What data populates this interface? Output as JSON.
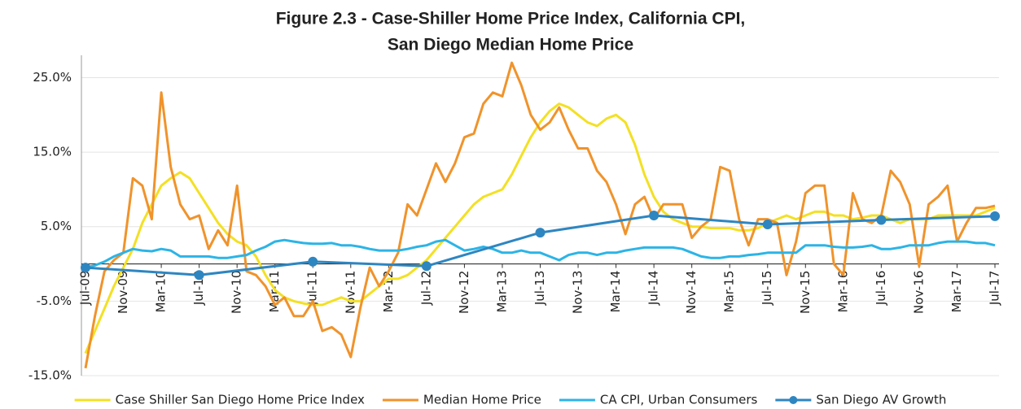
{
  "chart_data": {
    "type": "line",
    "title": [
      "Figure 2.3 - Case-Shiller Home Price Index, California CPI,",
      "San Diego Median Home Price"
    ],
    "categories": [
      "Jul-09",
      null,
      null,
      null,
      "Nov-09",
      null,
      null,
      null,
      "Mar-10",
      null,
      null,
      null,
      "Jul-10",
      null,
      null,
      null,
      "Nov-10",
      null,
      null,
      null,
      "Mar-11",
      null,
      null,
      null,
      "Jul-11",
      null,
      null,
      null,
      "Nov-11",
      null,
      null,
      null,
      "Mar-12",
      null,
      null,
      null,
      "Jul-12",
      null,
      null,
      null,
      "Nov-12",
      null,
      null,
      null,
      "Mar-13",
      null,
      null,
      null,
      "Jul-13",
      null,
      null,
      null,
      "Nov-13",
      null,
      null,
      null,
      "Mar-14",
      null,
      null,
      null,
      "Jul-14",
      null,
      null,
      null,
      "Nov-14",
      null,
      null,
      null,
      "Mar-15",
      null,
      null,
      null,
      "Jul-15",
      null,
      null,
      null,
      "Nov-15",
      null,
      null,
      null,
      "Mar-16",
      null,
      null,
      null,
      "Jul-16",
      null,
      null,
      null,
      "Nov-16",
      null,
      null,
      null,
      "Mar-17",
      null,
      null,
      null,
      "Jul-17"
    ],
    "series": [
      {
        "name": "Case Shiller San Diego Home Price Index",
        "color": "#f3e024",
        "values": [
          -12,
          -9,
          -6,
          -3,
          -0.5,
          2,
          5.5,
          8,
          10.5,
          11.5,
          12.3,
          11.5,
          9.5,
          7.5,
          5.5,
          4,
          3,
          2.5,
          1,
          -1.5,
          -3.5,
          -4.5,
          -5,
          -5.3,
          -5.5,
          -5.5,
          -5,
          -4.5,
          -5,
          -5,
          -4,
          -3,
          -2,
          -2,
          -1.5,
          -0.5,
          0.5,
          2,
          3.5,
          5,
          6.5,
          8,
          9,
          9.5,
          10,
          12,
          14.5,
          17,
          19,
          20.5,
          21.5,
          21,
          20,
          19,
          18.5,
          19.5,
          20,
          19,
          16,
          12,
          9,
          7,
          6,
          5.5,
          5,
          5,
          4.8,
          4.8,
          4.8,
          4.5,
          4.5,
          4.8,
          5.5,
          6,
          6.5,
          6,
          6.5,
          7,
          7,
          6.5,
          6.5,
          6,
          6.2,
          6.5,
          6.5,
          6,
          5.5,
          6,
          6,
          6,
          6.5,
          6.5,
          6.5,
          6.5,
          6.5,
          7,
          7.5
        ]
      },
      {
        "name": "Median Home Price",
        "color": "#f0932b",
        "values": [
          -14,
          -7,
          -1,
          0.5,
          1.5,
          11.5,
          10.5,
          6,
          23,
          13,
          8,
          6,
          6.5,
          2,
          4.5,
          2.5,
          10.5,
          -1,
          -1.5,
          -3,
          -5.5,
          -4.5,
          -7,
          -7,
          -5,
          -9,
          -8.5,
          -9.5,
          -12.5,
          -6,
          -0.5,
          -3,
          -1,
          1.5,
          8,
          6.5,
          10,
          13.5,
          11,
          13.5,
          17,
          17.5,
          21.5,
          23,
          22.5,
          27,
          24,
          20,
          18,
          19,
          21,
          18,
          15.5,
          15.5,
          12.5,
          11,
          8,
          4,
          8,
          9,
          6,
          8,
          8,
          8,
          3.5,
          5,
          6,
          13,
          12.5,
          6,
          2.5,
          6,
          6,
          5.5,
          -1.5,
          3,
          9.5,
          10.5,
          10.5,
          0,
          -1.5,
          9.5,
          6,
          5.5,
          6.5,
          12.5,
          11,
          8,
          -0.3,
          8,
          9,
          10.5,
          3,
          5.5,
          7.5,
          7.5,
          7.8
        ]
      },
      {
        "name": "CA CPI, Urban Consumers",
        "color": "#2cb4e6",
        "values": [
          -0.5,
          -0.2,
          0.3,
          1,
          1.5,
          2,
          1.8,
          1.7,
          2,
          1.8,
          1,
          1,
          1,
          1,
          0.8,
          0.8,
          1,
          1.2,
          1.8,
          2.3,
          3,
          3.2,
          3,
          2.8,
          2.7,
          2.7,
          2.8,
          2.5,
          2.5,
          2.3,
          2,
          1.8,
          1.8,
          1.8,
          2,
          2.3,
          2.5,
          3,
          3.2,
          2.5,
          1.8,
          2,
          2.3,
          2,
          1.5,
          1.5,
          1.8,
          1.5,
          1.5,
          1,
          0.5,
          1.2,
          1.5,
          1.5,
          1.2,
          1.5,
          1.5,
          1.8,
          2,
          2.2,
          2.2,
          2.2,
          2.2,
          2,
          1.5,
          1,
          0.8,
          0.8,
          1,
          1,
          1.2,
          1.3,
          1.5,
          1.5,
          1.5,
          1.5,
          2.5,
          2.5,
          2.5,
          2.3,
          2.2,
          2.2,
          2.3,
          2.5,
          2,
          2,
          2.2,
          2.5,
          2.5,
          2.5,
          2.8,
          3,
          3,
          3,
          2.8,
          2.8,
          2.5
        ]
      },
      {
        "name": "San Diego AV Growth",
        "color": "#2e86c1",
        "markers": true,
        "x": [
          "Jul-09",
          "Jul-10",
          "Jul-11",
          "Jul-12",
          "Jul-13",
          "Jul-14",
          "Jul-15",
          "Jul-16",
          "Jul-17"
        ],
        "values": [
          -0.5,
          -1.5,
          0.3,
          -0.3,
          4.2,
          6.5,
          5.3,
          5.9,
          6.4
        ]
      }
    ],
    "ylim": [
      -15,
      28
    ],
    "yticks": [
      {
        "value": -15,
        "label": "-15.0%"
      },
      {
        "value": -5,
        "label": "-5.0%"
      },
      {
        "value": 5,
        "label": "5.0%"
      },
      {
        "value": 15,
        "label": "15.0%"
      },
      {
        "value": 25,
        "label": "25.0%"
      }
    ],
    "grid": true,
    "legend": "bottom"
  }
}
